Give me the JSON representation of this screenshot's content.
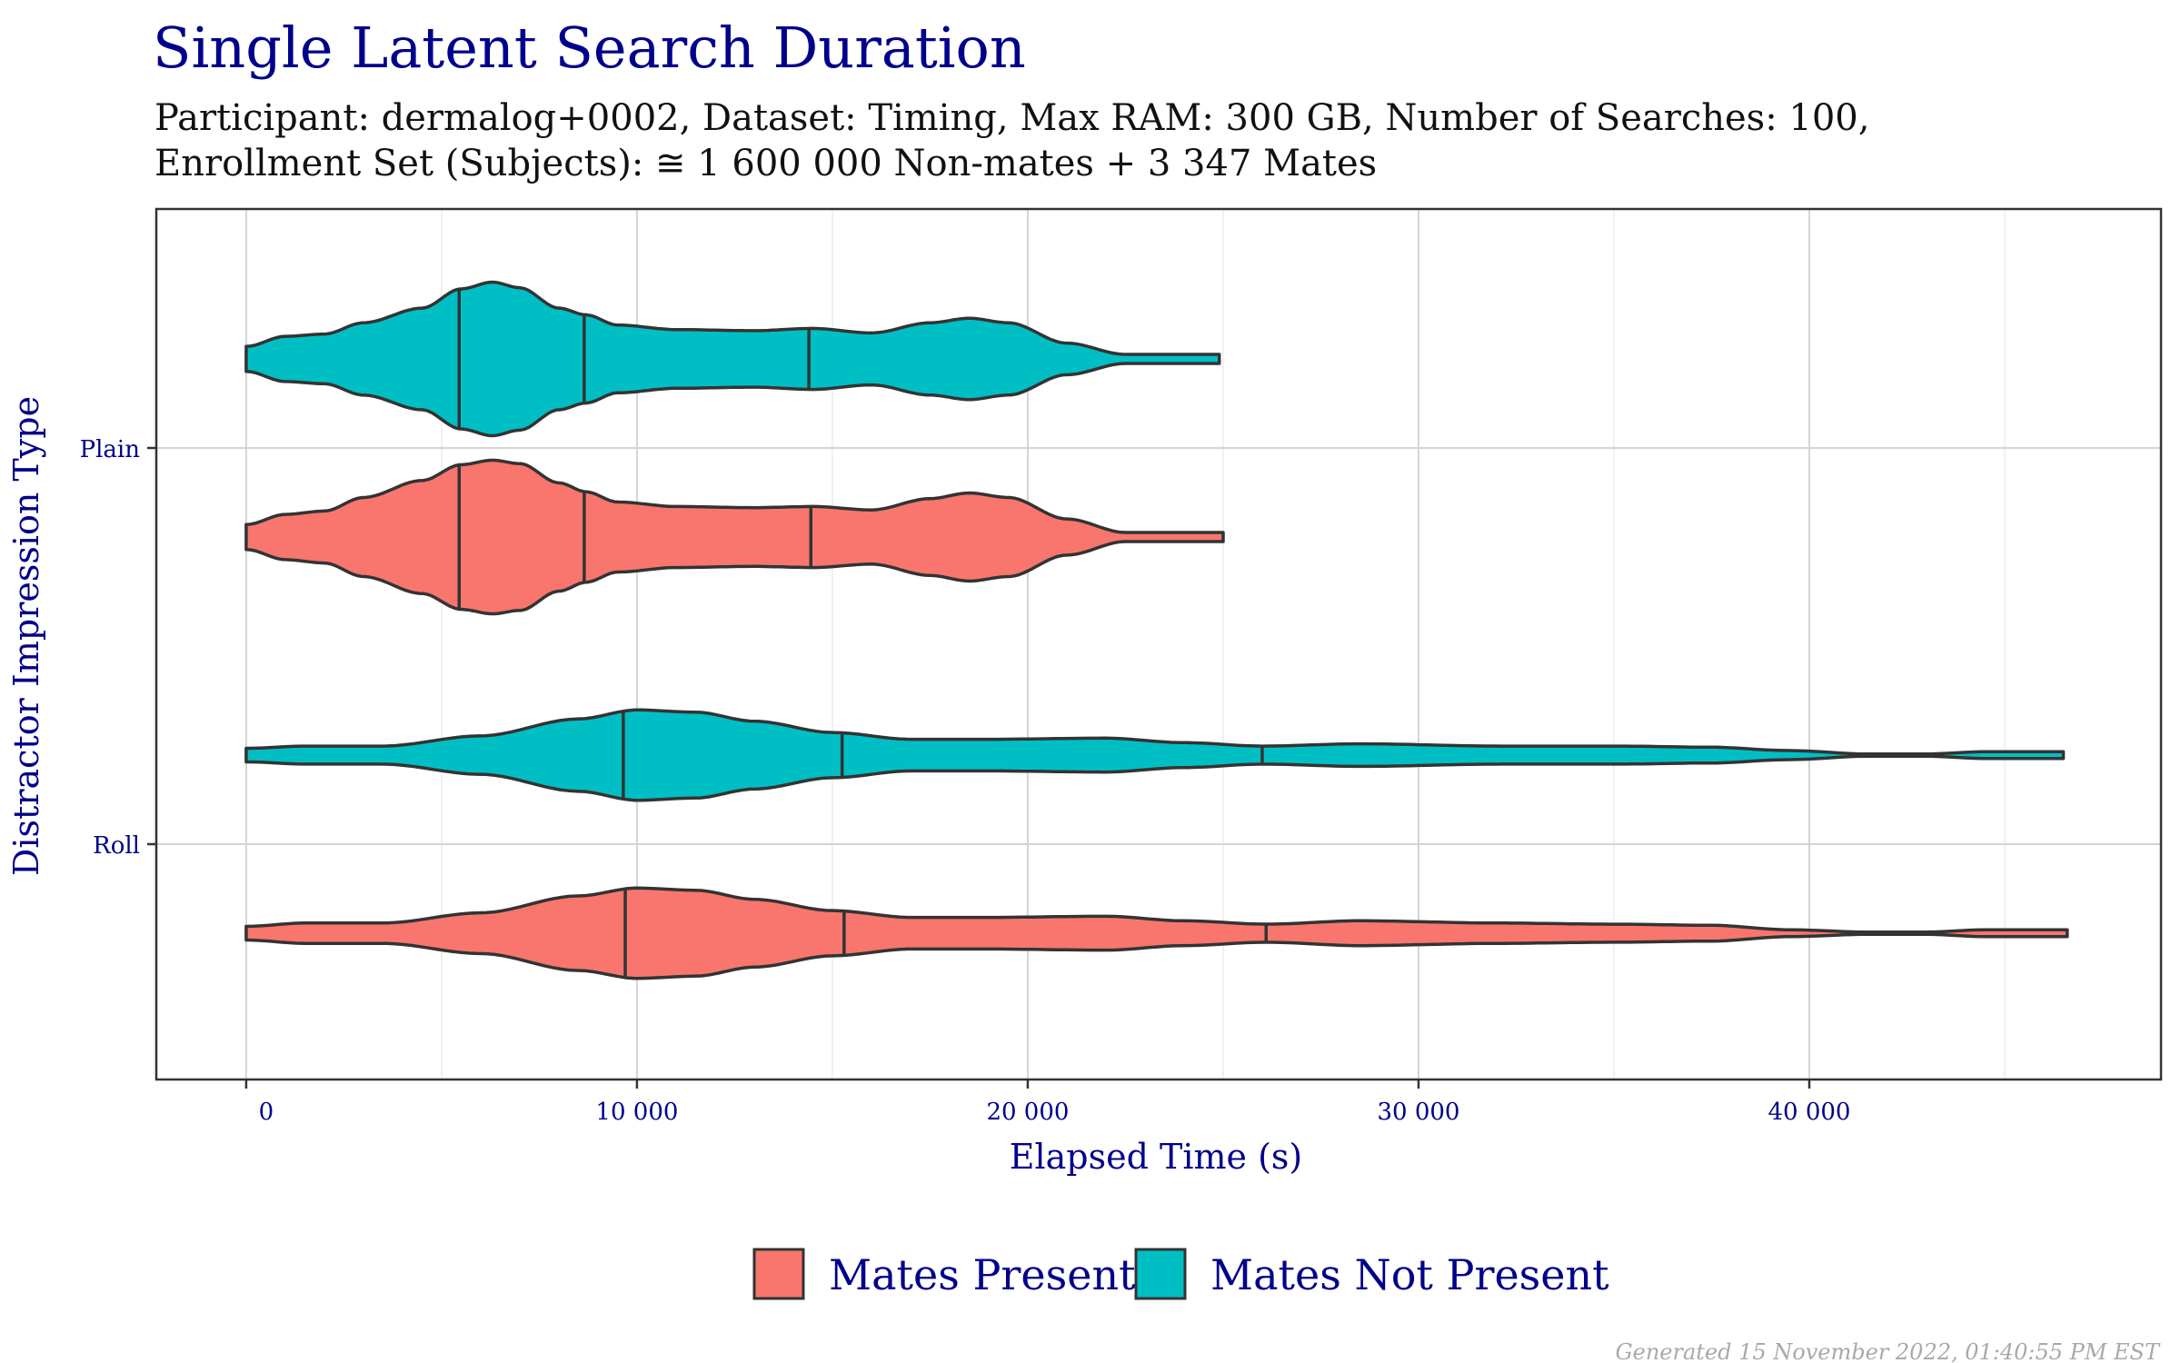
{
  "chart_data": {
    "type": "violin",
    "title": "Single Latent Search Duration",
    "subtitle_line1": "Participant: dermalog+0002, Dataset: Timing, Max RAM: 300 GB, Number of Searches: 100,",
    "subtitle_line2": "Enrollment Set (Subjects): ≅ 1 600 000 Non-mates + 3 347 Mates",
    "xlabel": "Elapsed Time (s)",
    "ylabel": "Distractor Impression Type",
    "xlim": [
      -2300,
      49000
    ],
    "x_ticks": [
      0,
      10000,
      20000,
      30000,
      40000
    ],
    "x_tick_labels": [
      "0",
      "10 000",
      "20 000",
      "30 000",
      "40 000"
    ],
    "categories": [
      "Plain",
      "Roll"
    ],
    "legend": {
      "position": "bottom",
      "entries": [
        {
          "name": "Mates Present",
          "color": "#F8766D"
        },
        {
          "name": "Mates Not Present",
          "color": "#00BFC4"
        }
      ]
    },
    "grid": true,
    "series": [
      {
        "category": "Plain",
        "name": "Mates Not Present",
        "color": "#00BFC4",
        "range": [
          0,
          24900
        ],
        "quantiles": [
          5450,
          8650,
          14400
        ],
        "density": [
          [
            0,
            0.11
          ],
          [
            1000,
            0.2
          ],
          [
            2000,
            0.22
          ],
          [
            3000,
            0.32
          ],
          [
            4500,
            0.45
          ],
          [
            5500,
            0.62
          ],
          [
            6300,
            0.68
          ],
          [
            7000,
            0.63
          ],
          [
            8000,
            0.45
          ],
          [
            8700,
            0.39
          ],
          [
            9500,
            0.3
          ],
          [
            11000,
            0.26
          ],
          [
            13000,
            0.25
          ],
          [
            14500,
            0.27
          ],
          [
            16000,
            0.23
          ],
          [
            17500,
            0.32
          ],
          [
            18500,
            0.36
          ],
          [
            19500,
            0.32
          ],
          [
            21000,
            0.14
          ],
          [
            22500,
            0.04
          ],
          [
            24900,
            0.04
          ]
        ]
      },
      {
        "category": "Plain",
        "name": "Mates Present",
        "color": "#F8766D",
        "range": [
          0,
          25000
        ],
        "quantiles": [
          5450,
          8650,
          14450
        ],
        "density": [
          [
            0,
            0.11
          ],
          [
            1000,
            0.2
          ],
          [
            2000,
            0.23
          ],
          [
            3000,
            0.35
          ],
          [
            4500,
            0.5
          ],
          [
            5500,
            0.64
          ],
          [
            6300,
            0.68
          ],
          [
            7000,
            0.65
          ],
          [
            8000,
            0.48
          ],
          [
            8700,
            0.4
          ],
          [
            9500,
            0.31
          ],
          [
            11000,
            0.27
          ],
          [
            13000,
            0.26
          ],
          [
            14500,
            0.27
          ],
          [
            16000,
            0.24
          ],
          [
            17500,
            0.34
          ],
          [
            18500,
            0.39
          ],
          [
            19500,
            0.35
          ],
          [
            21000,
            0.16
          ],
          [
            22500,
            0.04
          ],
          [
            25000,
            0.04
          ]
        ]
      },
      {
        "category": "Roll",
        "name": "Mates Not Present",
        "color": "#00BFC4",
        "range": [
          0,
          46500
        ],
        "quantiles": [
          9650,
          15250,
          26000
        ],
        "density": [
          [
            0,
            0.06
          ],
          [
            1500,
            0.08
          ],
          [
            3500,
            0.08
          ],
          [
            6000,
            0.17
          ],
          [
            8500,
            0.32
          ],
          [
            10000,
            0.4
          ],
          [
            11500,
            0.38
          ],
          [
            13000,
            0.3
          ],
          [
            15000,
            0.2
          ],
          [
            17000,
            0.14
          ],
          [
            19000,
            0.14
          ],
          [
            22000,
            0.15
          ],
          [
            24000,
            0.11
          ],
          [
            26000,
            0.08
          ],
          [
            28500,
            0.1
          ],
          [
            32000,
            0.08
          ],
          [
            35000,
            0.08
          ],
          [
            37500,
            0.07
          ],
          [
            39500,
            0.04
          ],
          [
            41500,
            0.01
          ],
          [
            43000,
            0.01
          ],
          [
            44500,
            0.03
          ],
          [
            46500,
            0.03
          ]
        ]
      },
      {
        "category": "Roll",
        "name": "Mates Present",
        "color": "#F8766D",
        "range": [
          0,
          46600
        ],
        "quantiles": [
          9700,
          15300,
          26100
        ],
        "density": [
          [
            0,
            0.06
          ],
          [
            1500,
            0.09
          ],
          [
            3500,
            0.09
          ],
          [
            6000,
            0.18
          ],
          [
            8500,
            0.33
          ],
          [
            10000,
            0.4
          ],
          [
            11500,
            0.38
          ],
          [
            13000,
            0.3
          ],
          [
            15000,
            0.2
          ],
          [
            17000,
            0.14
          ],
          [
            19000,
            0.14
          ],
          [
            22000,
            0.15
          ],
          [
            24000,
            0.11
          ],
          [
            26100,
            0.08
          ],
          [
            28500,
            0.11
          ],
          [
            32000,
            0.09
          ],
          [
            35000,
            0.08
          ],
          [
            37500,
            0.07
          ],
          [
            39500,
            0.03
          ],
          [
            41500,
            0.01
          ],
          [
            43000,
            0.01
          ],
          [
            44500,
            0.03
          ],
          [
            46600,
            0.03
          ]
        ]
      }
    ]
  },
  "footer": "Generated 15 November 2022, 01:40:55 PM EST"
}
